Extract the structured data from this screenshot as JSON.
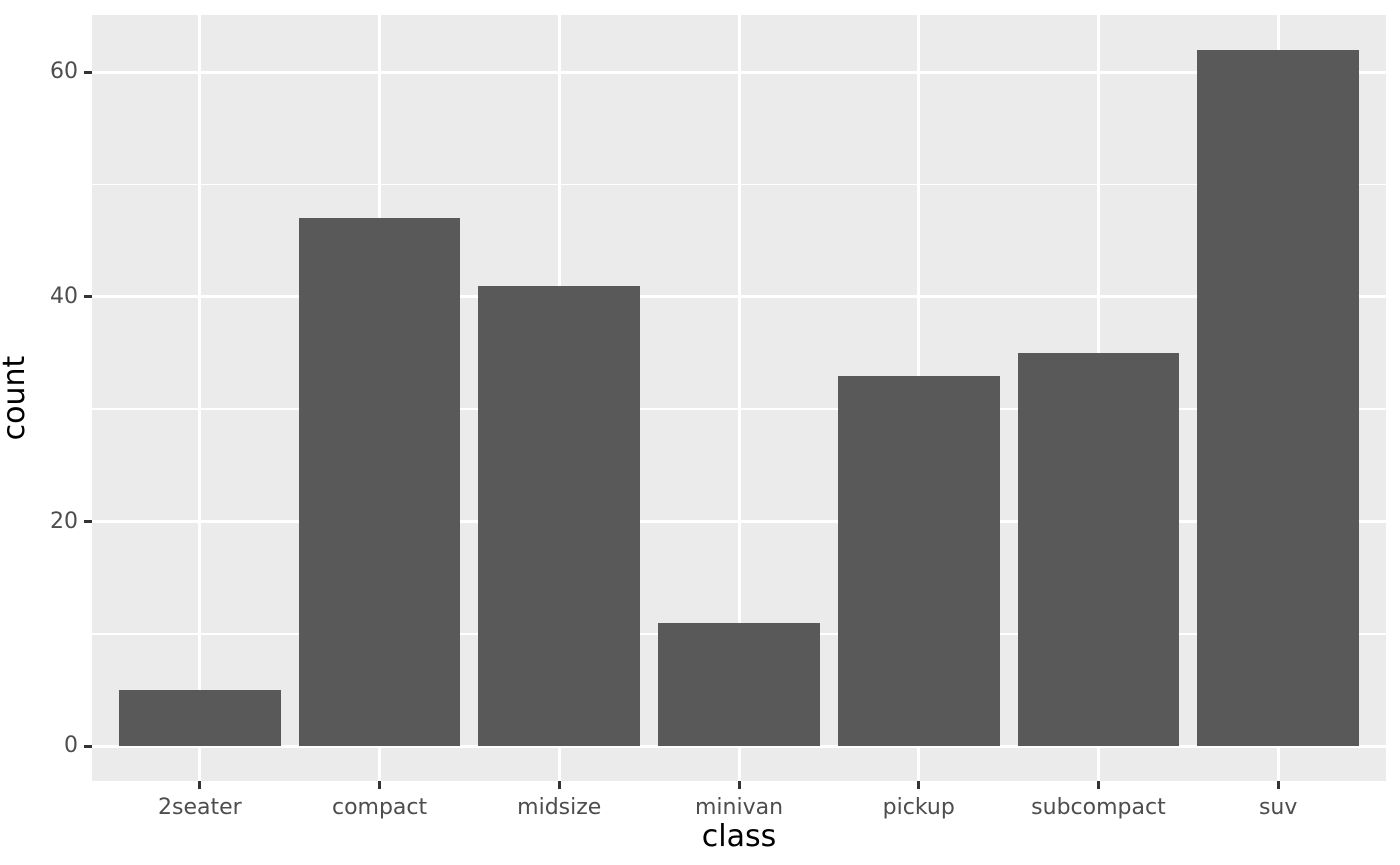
{
  "chart_data": {
    "type": "bar",
    "title": "",
    "xlabel": "class",
    "ylabel": "count",
    "categories": [
      "2seater",
      "compact",
      "midsize",
      "minivan",
      "pickup",
      "subcompact",
      "suv"
    ],
    "values": [
      5,
      47,
      41,
      11,
      33,
      35,
      62
    ],
    "y_axis": {
      "tick_labels": [
        "0",
        "20",
        "40",
        "60"
      ],
      "major_ticks": [
        0,
        20,
        40,
        60
      ],
      "minor_gridlines": [
        10,
        30,
        50
      ],
      "range": [
        -3.1,
        65.1
      ]
    },
    "x_axis": {
      "range_units": [
        0.4,
        7.6
      ],
      "bar_width_units": 0.9
    },
    "legend_position": "none",
    "grid": true,
    "style": "ggplot2-theme-grey",
    "colors": {
      "bar_fill": "#595959",
      "panel_background": "#EBEBEB",
      "gridline": "#FFFFFF",
      "tick_mark": "#333333",
      "tick_label": "#4D4D4D",
      "axis_title": "#000000",
      "outer_background": "#FFFFFF"
    }
  }
}
